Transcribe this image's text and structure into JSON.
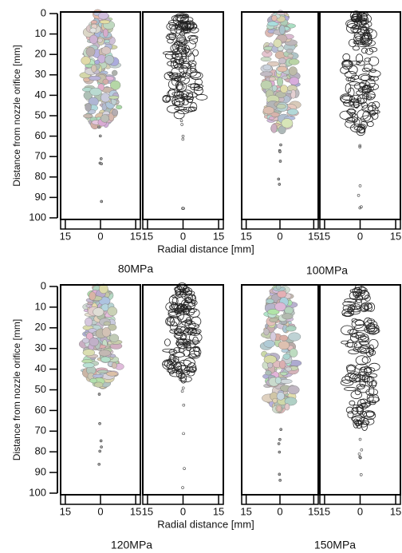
{
  "rows": [
    {
      "y_axis_label": "Distance from nozzle orifice [mm]",
      "ylim": [
        0,
        100
      ],
      "yticks": [
        0,
        10,
        20,
        30,
        40,
        50,
        60,
        70,
        80,
        90,
        100
      ],
      "x_axis_label": "Radial distance [mm]",
      "xlim": [
        -17,
        17
      ],
      "xticks": [
        {
          "value": -15,
          "label": "15"
        },
        0,
        15
      ],
      "captions": [
        "80MPa",
        "100MPa"
      ]
    },
    {
      "y_axis_label": "Distance from nozzle orifice [mm]",
      "ylim": [
        0,
        100
      ],
      "yticks": [
        0,
        10,
        20,
        30,
        40,
        50,
        60,
        70,
        80,
        90,
        100
      ],
      "x_axis_label": "Radial distance [mm]",
      "xlim": [
        -17,
        17
      ],
      "xticks": [
        {
          "value": -15,
          "label": "15"
        },
        0,
        15
      ],
      "captions": [
        "120MPa",
        "150MPa"
      ]
    }
  ]
}
